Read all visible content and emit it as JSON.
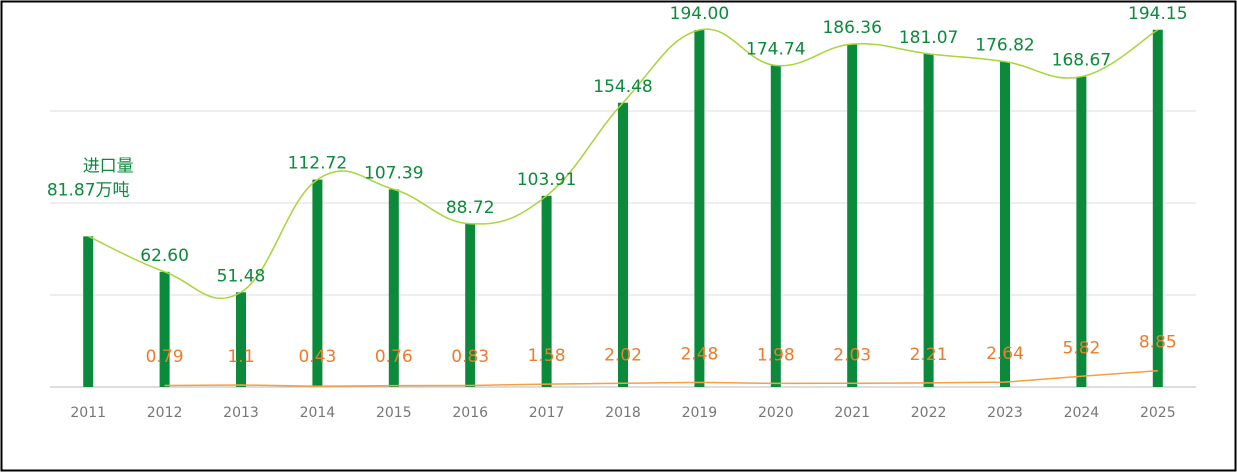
{
  "chart_data": {
    "type": "bar",
    "categories": [
      "2011",
      "2012",
      "2013",
      "2014",
      "2015",
      "2016",
      "2017",
      "2018",
      "2019",
      "2020",
      "2021",
      "2022",
      "2023",
      "2024",
      "2025"
    ],
    "series": [
      {
        "name": "进口量",
        "color": "#0b8a3c",
        "line_color": "#a9d43a",
        "values": [
          81.87,
          62.6,
          51.48,
          112.72,
          107.39,
          88.72,
          103.91,
          154.48,
          194.0,
          174.74,
          186.36,
          181.07,
          176.82,
          168.67,
          194.15
        ],
        "value_labels": [
          "81.87万吨",
          "62.60",
          "51.48",
          "112.72",
          "107.39",
          "88.72",
          "103.91",
          "154.48",
          "194.00",
          "174.74",
          "186.36",
          "181.07",
          "176.82",
          "168.67",
          "194.15"
        ]
      },
      {
        "color": "#f5a042",
        "label_color": "#f07a2a",
        "values": [
          null,
          0.79,
          1.1,
          0.43,
          0.76,
          0.83,
          1.58,
          2.02,
          2.48,
          1.98,
          2.03,
          2.21,
          2.64,
          5.82,
          8.85
        ]
      }
    ],
    "ylim": [
      0,
      200
    ],
    "yticks": [
      0,
      50,
      100,
      150
    ],
    "grid": true
  }
}
